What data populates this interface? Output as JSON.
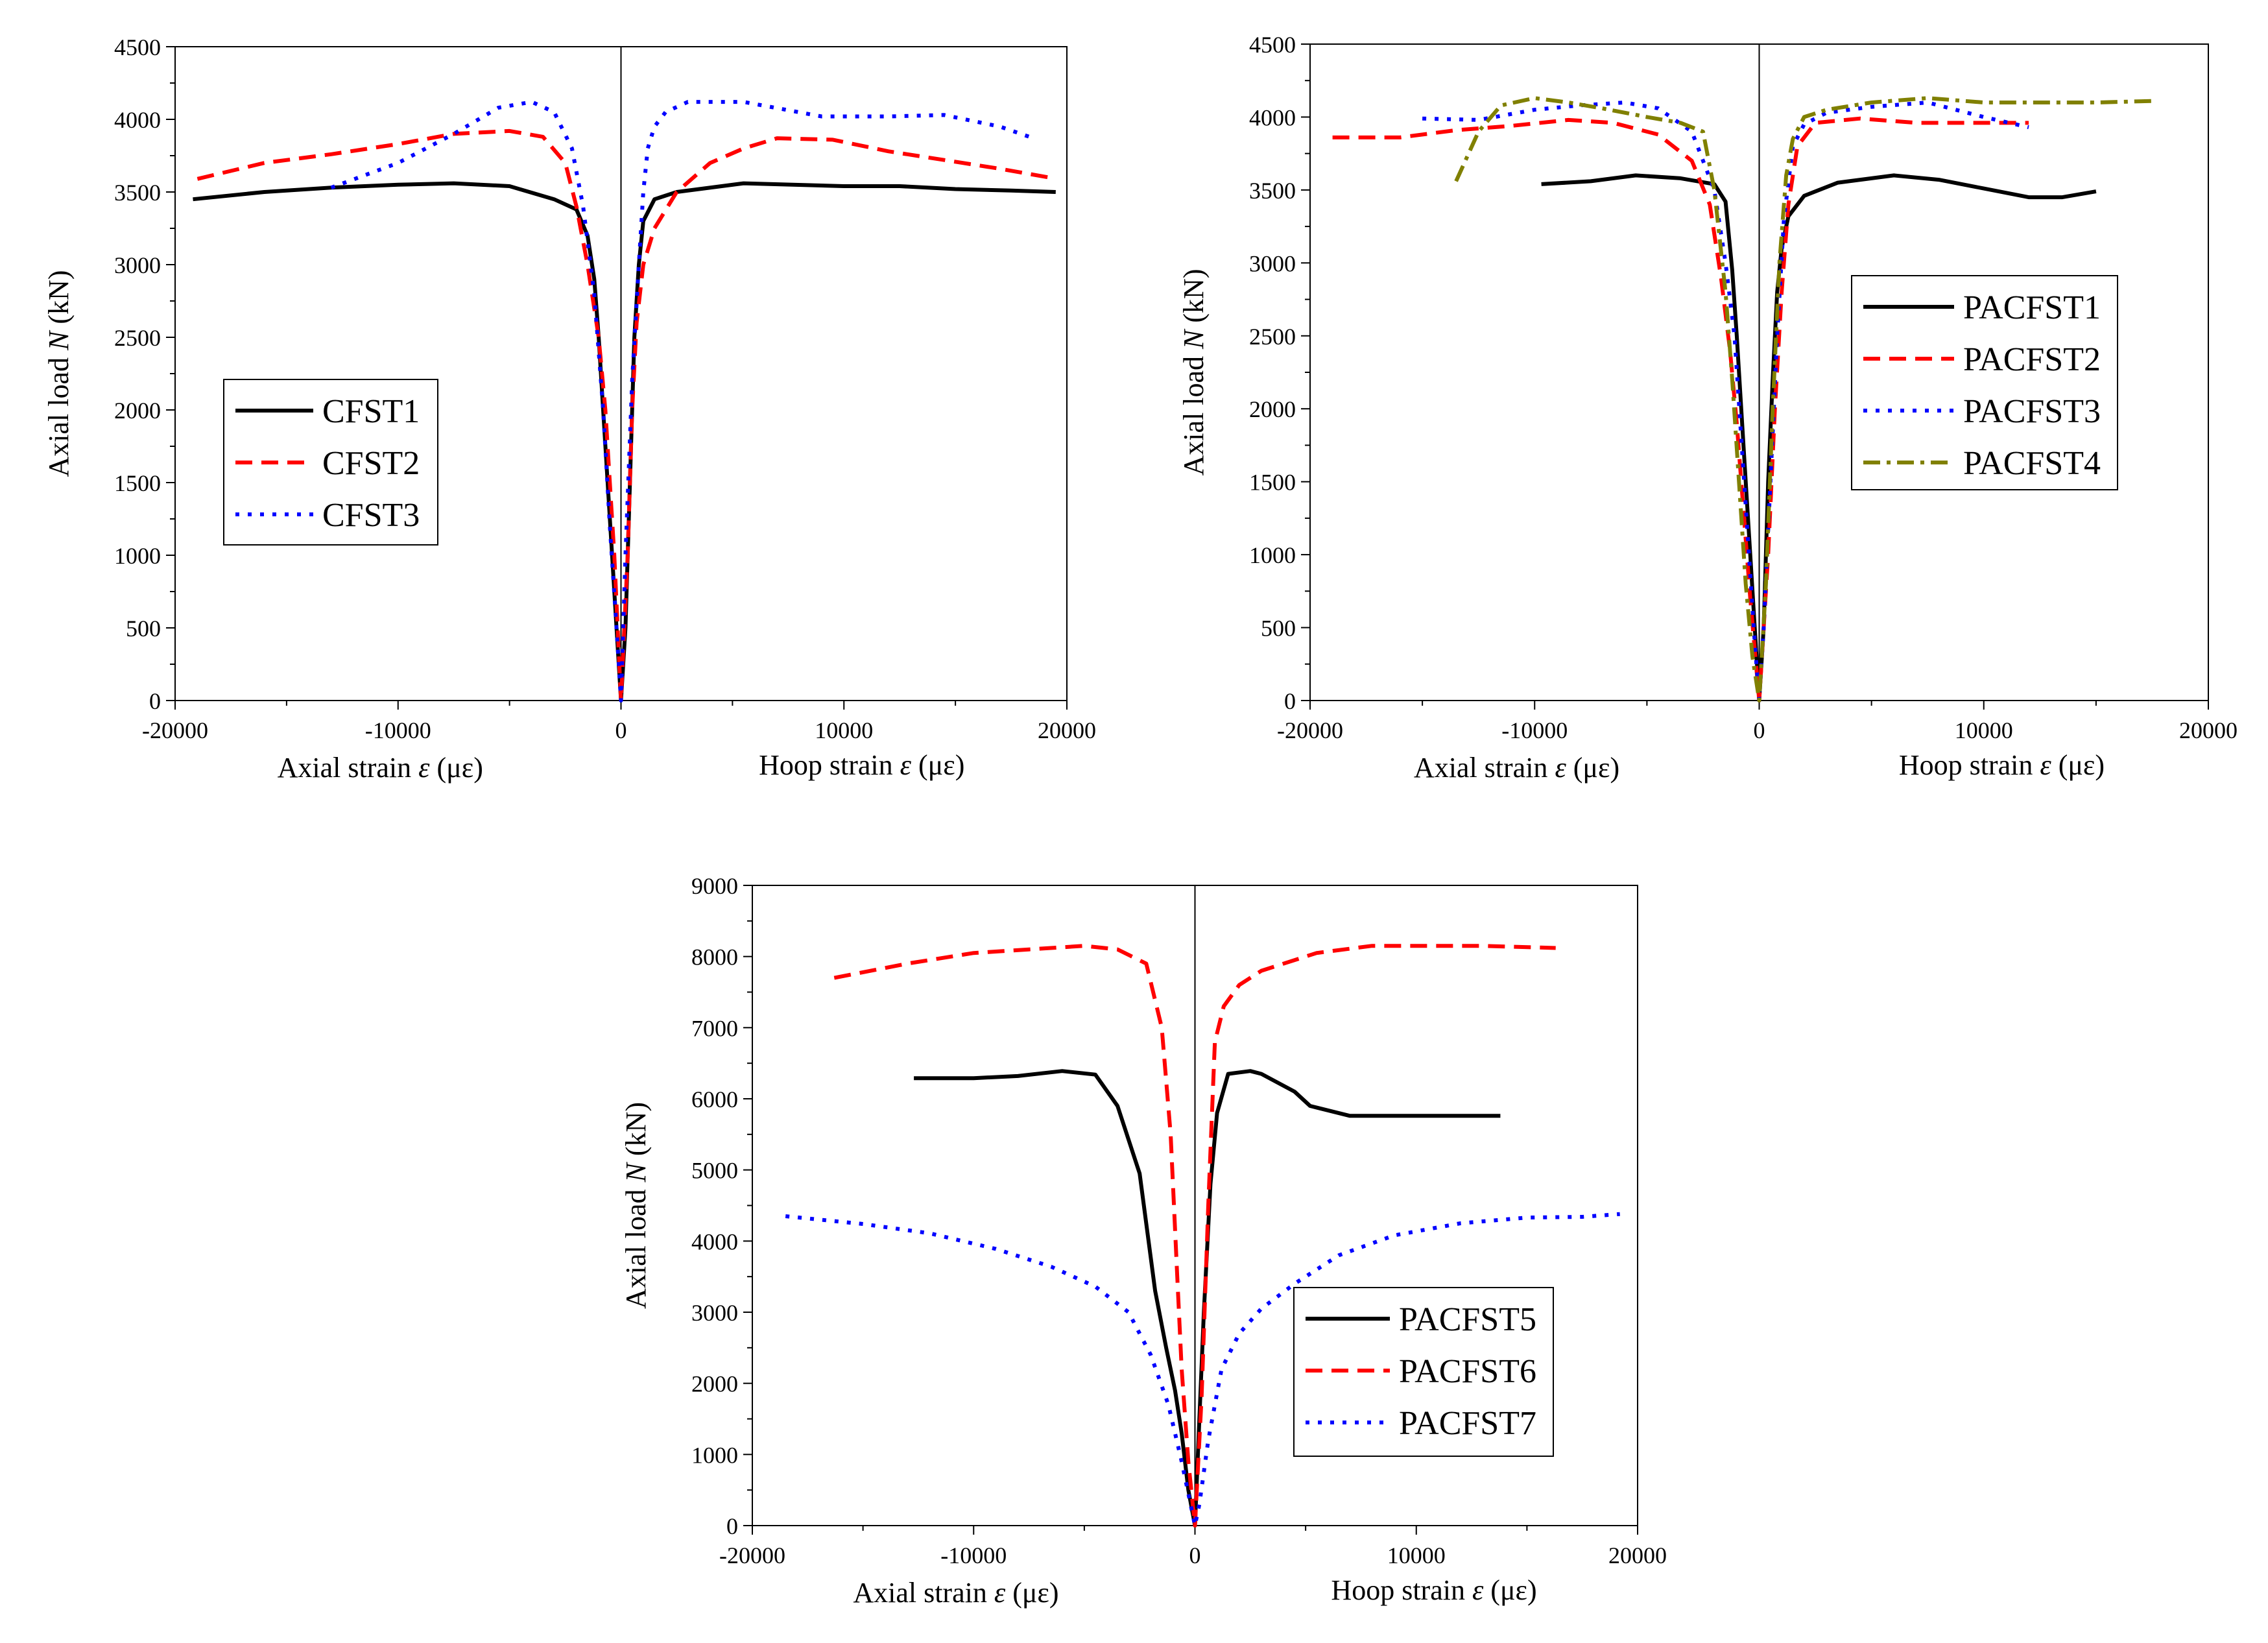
{
  "chart_data": [
    {
      "type": "line",
      "panel": "top-left",
      "ylabel_parts": [
        "Axial load ",
        "N",
        " (kN)"
      ],
      "xlabel_left_parts": [
        "Axial strain ",
        "ε",
        " (με)"
      ],
      "xlabel_right_parts": [
        "Hoop strain ",
        "ε",
        " (με)"
      ],
      "xlim": [
        -20000,
        20000
      ],
      "ylim": [
        0,
        4500
      ],
      "xticks": [
        -20000,
        -10000,
        0,
        10000,
        20000
      ],
      "xtick_labels": [
        "-20000",
        "-10000",
        "0",
        "10000",
        "20000"
      ],
      "yticks": [
        0,
        500,
        1000,
        1500,
        2000,
        2500,
        3000,
        3500,
        4000,
        4500
      ],
      "ytick_labels": [
        "0",
        "500",
        "1000",
        "1500",
        "2000",
        "2500",
        "3000",
        "3500",
        "4000",
        "4500"
      ],
      "zero_line": true,
      "legend_position": "center-left",
      "series": [
        {
          "name": "CFST1",
          "color": "#000000",
          "dash": "solid",
          "x": [
            -19200,
            -16000,
            -13000,
            -10000,
            -7500,
            -5000,
            -3000,
            -2000,
            -1500,
            -1200,
            -1000,
            -800,
            -600,
            -400,
            -200,
            0,
            200,
            400,
            600,
            800,
            1000,
            1500,
            2500,
            5500,
            10000,
            12500,
            15000,
            17500,
            19500
          ],
          "y": [
            3450,
            3500,
            3530,
            3550,
            3560,
            3540,
            3450,
            3380,
            3200,
            2900,
            2500,
            2000,
            1500,
            1000,
            500,
            0,
            500,
            1500,
            2500,
            3000,
            3300,
            3450,
            3500,
            3560,
            3540,
            3540,
            3520,
            3510,
            3500
          ]
        },
        {
          "name": "CFST2",
          "color": "#ff0000",
          "dash": "dashed",
          "x": [
            -19000,
            -16000,
            -13000,
            -10000,
            -7500,
            -5000,
            -3500,
            -2500,
            -2000,
            -1500,
            -1000,
            -700,
            -500,
            -300,
            0,
            300,
            500,
            700,
            1000,
            1500,
            2500,
            4000,
            5500,
            7000,
            9500,
            12000,
            14500,
            17000,
            19200
          ],
          "y": [
            3590,
            3700,
            3760,
            3830,
            3900,
            3920,
            3880,
            3700,
            3400,
            3000,
            2500,
            2000,
            1500,
            1000,
            0,
            1000,
            2000,
            2600,
            3000,
            3250,
            3500,
            3700,
            3800,
            3870,
            3860,
            3780,
            3720,
            3660,
            3600
          ]
        },
        {
          "name": "CFST3",
          "color": "#0000ff",
          "dash": "dotted",
          "x": [
            -13000,
            -10000,
            -7500,
            -5500,
            -4000,
            -3000,
            -2200,
            -1700,
            -1200,
            -800,
            -500,
            -200,
            0,
            200,
            500,
            800,
            1000,
            1200,
            1500,
            2000,
            3000,
            5500,
            9000,
            12000,
            14500,
            17000,
            18500
          ],
          "y": [
            3530,
            3700,
            3900,
            4080,
            4120,
            4050,
            3800,
            3400,
            2800,
            2000,
            1200,
            500,
            0,
            1000,
            2200,
            3000,
            3500,
            3800,
            3950,
            4050,
            4120,
            4120,
            4020,
            4020,
            4030,
            3950,
            3870
          ]
        }
      ]
    },
    {
      "type": "line",
      "panel": "top-right",
      "ylabel_parts": [
        "Axial load ",
        "N",
        " (kN)"
      ],
      "xlabel_left_parts": [
        "Axial strain ",
        "ε",
        " (με)"
      ],
      "xlabel_right_parts": [
        "Hoop strain ",
        "ε",
        " (με)"
      ],
      "xlim": [
        -20000,
        20000
      ],
      "ylim": [
        0,
        4500
      ],
      "xticks": [
        -20000,
        -10000,
        0,
        10000,
        20000
      ],
      "xtick_labels": [
        "-20000",
        "-10000",
        "0",
        "10000",
        "20000"
      ],
      "yticks": [
        0,
        500,
        1000,
        1500,
        2000,
        2500,
        3000,
        3500,
        4000,
        4500
      ],
      "ytick_labels": [
        "0",
        "500",
        "1000",
        "1500",
        "2000",
        "2500",
        "3000",
        "3500",
        "4000",
        "4500"
      ],
      "zero_line": true,
      "legend_position": "center-right",
      "series": [
        {
          "name": "PACFST1",
          "color": "#000000",
          "dash": "solid",
          "x": [
            -9700,
            -7500,
            -5500,
            -3500,
            -2000,
            -1500,
            -1200,
            -1000,
            -800,
            -600,
            -400,
            -200,
            0,
            200,
            400,
            600,
            800,
            1000,
            1300,
            2000,
            3500,
            6000,
            8000,
            10000,
            12000,
            13500,
            15000
          ],
          "y": [
            3540,
            3560,
            3600,
            3580,
            3540,
            3420,
            2950,
            2500,
            2000,
            1500,
            1000,
            500,
            0,
            500,
            1500,
            2200,
            2800,
            3100,
            3320,
            3460,
            3550,
            3600,
            3570,
            3510,
            3450,
            3450,
            3490
          ]
        },
        {
          "name": "PACFST2",
          "color": "#ff0000",
          "dash": "dashed",
          "x": [
            -19000,
            -16000,
            -13500,
            -11000,
            -8500,
            -6500,
            -4500,
            -3000,
            -2200,
            -1700,
            -1300,
            -1000,
            -700,
            -400,
            0,
            400,
            700,
            1000,
            1300,
            1700,
            2500,
            4500,
            7000,
            9500,
            12000
          ],
          "y": [
            3860,
            3860,
            3910,
            3940,
            3980,
            3960,
            3880,
            3700,
            3400,
            2900,
            2400,
            1900,
            1300,
            700,
            0,
            1000,
            2000,
            2800,
            3400,
            3800,
            3960,
            3990,
            3960,
            3960,
            3960
          ]
        },
        {
          "name": "PACFST3",
          "color": "#0000ff",
          "dash": "dotted",
          "x": [
            -15000,
            -12500,
            -10000,
            -8000,
            -6000,
            -4500,
            -3000,
            -2000,
            -1500,
            -1100,
            -800,
            -500,
            -200,
            0,
            200,
            500,
            800,
            1100,
            1500,
            2000,
            3000,
            5000,
            7500,
            10000,
            12000
          ],
          "y": [
            3990,
            3980,
            4050,
            4080,
            4100,
            4060,
            3900,
            3500,
            3000,
            2500,
            1800,
            1100,
            400,
            0,
            500,
            1500,
            2500,
            3300,
            3800,
            3950,
            4030,
            4070,
            4100,
            4000,
            3930
          ]
        },
        {
          "name": "PACFST4",
          "color": "#808000",
          "dash": "dashdot",
          "x": [
            -13500,
            -12500,
            -11500,
            -10000,
            -8500,
            -7000,
            -5000,
            -3500,
            -2500,
            -2000,
            -1500,
            -1200,
            -900,
            -600,
            -300,
            0,
            300,
            600,
            900,
            1200,
            1500,
            2000,
            3000,
            5000,
            7500,
            10000,
            12500,
            15000,
            17500
          ],
          "y": [
            3560,
            3900,
            4080,
            4130,
            4100,
            4060,
            4000,
            3960,
            3900,
            3500,
            2800,
            2200,
            1500,
            800,
            300,
            0,
            800,
            2000,
            3000,
            3600,
            3850,
            4000,
            4050,
            4100,
            4130,
            4100,
            4100,
            4100,
            4110
          ]
        }
      ]
    },
    {
      "type": "line",
      "panel": "bottom",
      "ylabel_parts": [
        "Axial load ",
        "N",
        " (kN)"
      ],
      "xlabel_left_parts": [
        "Axial strain ",
        "ε",
        " (με)"
      ],
      "xlabel_right_parts": [
        "Hoop strain ",
        "ε",
        " (με)"
      ],
      "xlim": [
        -20000,
        20000
      ],
      "ylim": [
        0,
        9000
      ],
      "xticks": [
        -20000,
        -10000,
        0,
        10000,
        20000
      ],
      "xtick_labels": [
        "-20000",
        "-10000",
        "0",
        "10000",
        "20000"
      ],
      "yticks": [
        0,
        1000,
        2000,
        3000,
        4000,
        5000,
        6000,
        7000,
        8000,
        9000
      ],
      "ytick_labels": [
        "0",
        "1000",
        "2000",
        "3000",
        "4000",
        "5000",
        "6000",
        "7000",
        "8000",
        "9000"
      ],
      "zero_line": true,
      "legend_position": "bottom-right",
      "series": [
        {
          "name": "PACFST5",
          "color": "#000000",
          "dash": "solid",
          "x": [
            -12700,
            -10000,
            -8000,
            -6000,
            -4500,
            -3500,
            -2500,
            -1800,
            -1300,
            -900,
            -600,
            -300,
            0,
            200,
            400,
            700,
            1000,
            1500,
            2500,
            3000,
            4500,
            5200,
            7000,
            10000,
            12500,
            13800
          ],
          "y": [
            6290,
            6290,
            6320,
            6390,
            6340,
            5900,
            4950,
            3300,
            2500,
            1900,
            1300,
            500,
            0,
            1500,
            3000,
            4800,
            5800,
            6350,
            6390,
            6350,
            6100,
            5900,
            5760,
            5760,
            5760,
            5760
          ]
        },
        {
          "name": "PACFST6",
          "color": "#ff0000",
          "dash": "dashed",
          "x": [
            -16300,
            -13000,
            -10000,
            -7500,
            -5000,
            -3500,
            -2200,
            -1500,
            -1100,
            -800,
            -600,
            -300,
            0,
            300,
            600,
            900,
            1300,
            2000,
            3000,
            5500,
            8000,
            10500,
            13000,
            16300
          ],
          "y": [
            7700,
            7900,
            8050,
            8100,
            8150,
            8100,
            7900,
            7000,
            5500,
            3500,
            2200,
            900,
            0,
            1800,
            4500,
            6800,
            7300,
            7600,
            7800,
            8050,
            8150,
            8150,
            8150,
            8120
          ]
        },
        {
          "name": "PACFST7",
          "color": "#0000ff",
          "dash": "dotted",
          "x": [
            -18500,
            -15000,
            -12000,
            -9000,
            -6500,
            -4500,
            -3000,
            -2000,
            -1200,
            -600,
            -200,
            0,
            200,
            600,
            1200,
            2000,
            3000,
            4500,
            6500,
            9000,
            12000,
            15000,
            17500,
            19200
          ],
          "y": [
            4350,
            4240,
            4110,
            3890,
            3640,
            3360,
            3000,
            2400,
            1700,
            900,
            300,
            0,
            300,
            1200,
            2200,
            2700,
            3050,
            3400,
            3800,
            4080,
            4250,
            4330,
            4340,
            4380
          ]
        }
      ]
    }
  ]
}
